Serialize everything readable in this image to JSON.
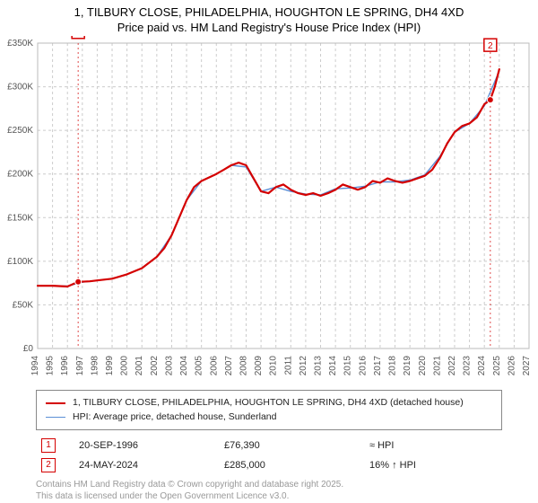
{
  "title": {
    "line1": "1, TILBURY CLOSE, PHILADELPHIA, HOUGHTON LE SPRING, DH4 4XD",
    "line2": "Price paid vs. HM Land Registry's House Price Index (HPI)",
    "fontsize": 13,
    "color": "#000000"
  },
  "chart": {
    "type": "line",
    "background_color": "#ffffff",
    "plot_border_color": "#bbbbbb",
    "grid_color": "#cccccc",
    "grid_dash": "3,3",
    "axis_label_color": "#555555",
    "axis_label_fontsize": 10,
    "x": {
      "min": 1994,
      "max": 2027,
      "ticks": [
        1994,
        1995,
        1996,
        1997,
        1998,
        1999,
        2000,
        2001,
        2002,
        2003,
        2004,
        2005,
        2006,
        2007,
        2008,
        2009,
        2010,
        2011,
        2012,
        2013,
        2014,
        2015,
        2016,
        2017,
        2018,
        2019,
        2020,
        2021,
        2022,
        2023,
        2024,
        2025,
        2026,
        2027
      ]
    },
    "y": {
      "min": 0,
      "max": 350000,
      "ticks": [
        0,
        50000,
        100000,
        150000,
        200000,
        250000,
        300000,
        350000
      ],
      "tick_labels": [
        "£0",
        "£50K",
        "£100K",
        "£150K",
        "£200K",
        "£250K",
        "£300K",
        "£350K"
      ]
    },
    "series": [
      {
        "name": "property",
        "color": "#d40000",
        "width": 2.2,
        "points": [
          [
            1994.0,
            72000
          ],
          [
            1995.0,
            72000
          ],
          [
            1996.0,
            71000
          ],
          [
            1996.72,
            76390
          ],
          [
            1997.5,
            77000
          ],
          [
            1998.0,
            78000
          ],
          [
            1999.0,
            80000
          ],
          [
            2000.0,
            85000
          ],
          [
            2001.0,
            92000
          ],
          [
            2002.0,
            105000
          ],
          [
            2002.5,
            115000
          ],
          [
            2003.0,
            130000
          ],
          [
            2003.5,
            150000
          ],
          [
            2004.0,
            170000
          ],
          [
            2004.5,
            185000
          ],
          [
            2005.0,
            192000
          ],
          [
            2005.5,
            196000
          ],
          [
            2006.0,
            200000
          ],
          [
            2006.5,
            205000
          ],
          [
            2007.0,
            210000
          ],
          [
            2007.5,
            213000
          ],
          [
            2008.0,
            210000
          ],
          [
            2008.5,
            195000
          ],
          [
            2009.0,
            180000
          ],
          [
            2009.5,
            178000
          ],
          [
            2010.0,
            185000
          ],
          [
            2010.5,
            188000
          ],
          [
            2011.0,
            182000
          ],
          [
            2011.5,
            178000
          ],
          [
            2012.0,
            176000
          ],
          [
            2012.5,
            178000
          ],
          [
            2013.0,
            175000
          ],
          [
            2013.5,
            178000
          ],
          [
            2014.0,
            182000
          ],
          [
            2014.5,
            188000
          ],
          [
            2015.0,
            185000
          ],
          [
            2015.5,
            182000
          ],
          [
            2016.0,
            185000
          ],
          [
            2016.5,
            192000
          ],
          [
            2017.0,
            190000
          ],
          [
            2017.5,
            195000
          ],
          [
            2018.0,
            192000
          ],
          [
            2018.5,
            190000
          ],
          [
            2019.0,
            192000
          ],
          [
            2019.5,
            195000
          ],
          [
            2020.0,
            198000
          ],
          [
            2020.5,
            205000
          ],
          [
            2021.0,
            218000
          ],
          [
            2021.5,
            235000
          ],
          [
            2022.0,
            248000
          ],
          [
            2022.5,
            255000
          ],
          [
            2023.0,
            258000
          ],
          [
            2023.5,
            265000
          ],
          [
            2024.0,
            280000
          ],
          [
            2024.4,
            285000
          ],
          [
            2024.7,
            300000
          ],
          [
            2025.0,
            320000
          ]
        ]
      },
      {
        "name": "hpi",
        "color": "#5b8fd6",
        "width": 1.4,
        "points": [
          [
            1994.0,
            72000
          ],
          [
            1995.0,
            72000
          ],
          [
            1996.0,
            71500
          ],
          [
            1997.0,
            76000
          ],
          [
            1998.0,
            78000
          ],
          [
            1999.0,
            80000
          ],
          [
            2000.0,
            85000
          ],
          [
            2001.0,
            92000
          ],
          [
            2002.0,
            105000
          ],
          [
            2003.0,
            130000
          ],
          [
            2004.0,
            170000
          ],
          [
            2005.0,
            192000
          ],
          [
            2006.0,
            200000
          ],
          [
            2007.0,
            210000
          ],
          [
            2008.0,
            208000
          ],
          [
            2009.0,
            180000
          ],
          [
            2010.0,
            185000
          ],
          [
            2011.0,
            180000
          ],
          [
            2012.0,
            177000
          ],
          [
            2013.0,
            176000
          ],
          [
            2014.0,
            183000
          ],
          [
            2015.0,
            184000
          ],
          [
            2016.0,
            186000
          ],
          [
            2017.0,
            191000
          ],
          [
            2018.0,
            191000
          ],
          [
            2019.0,
            193000
          ],
          [
            2020.0,
            199000
          ],
          [
            2021.0,
            220000
          ],
          [
            2022.0,
            248000
          ],
          [
            2023.0,
            258000
          ],
          [
            2024.0,
            278000
          ],
          [
            2025.0,
            318000
          ]
        ]
      }
    ],
    "markers": [
      {
        "id": "1",
        "x": 1996.72,
        "y": 76390,
        "color": "#d40000",
        "label_y_offset": -285
      },
      {
        "id": "2",
        "x": 2024.4,
        "y": 285000,
        "color": "#d40000",
        "label_y_offset": -68
      }
    ]
  },
  "legend": {
    "border_color": "#888888",
    "fontsize": 10.5,
    "items": [
      {
        "color": "#d40000",
        "width": 2.5,
        "label": "1, TILBURY CLOSE, PHILADELPHIA, HOUGHTON LE SPRING, DH4 4XD (detached house)"
      },
      {
        "color": "#5b8fd6",
        "width": 1.5,
        "label": "HPI: Average price, detached house, Sunderland"
      }
    ]
  },
  "sales": [
    {
      "marker": "1",
      "marker_color": "#d40000",
      "date": "20-SEP-1996",
      "price": "£76,390",
      "delta": "≈ HPI"
    },
    {
      "marker": "2",
      "marker_color": "#d40000",
      "date": "24-MAY-2024",
      "price": "£285,000",
      "delta": "16% ↑ HPI"
    }
  ],
  "attribution": {
    "line1": "Contains HM Land Registry data © Crown copyright and database right 2025.",
    "line2": "This data is licensed under the Open Government Licence v3.0.",
    "color": "#999999",
    "fontsize": 10
  }
}
